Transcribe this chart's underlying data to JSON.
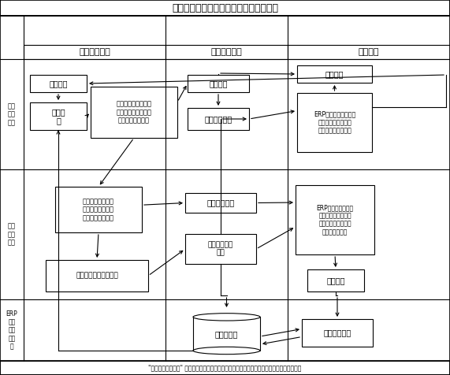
{
  "title": "产成品库区产品销货流程（容错改进后）",
  "col_headers": [
    "业务指令执行",
    "产品实物流转",
    "数据运行"
  ],
  "row_labels": [
    "产品\n销售\n业务",
    "库区\n管理\n业务",
    "ERP\n系统\n数据\n库支\n撑"
  ],
  "footer": "\"先起运后验证流程\" 整车起运与数据验证没有时间依赖关系，错码处置作为系统内部运行过程",
  "boxes": {
    "kh": {
      "text": "客户需求",
      "fs": 7
    },
    "ck": {
      "text": "存货检\n索",
      "fs": 7
    },
    "zl": {
      "text": "产品销货指令（客户\n、产品规格、色号、\n缸号、产品净重）",
      "fs": 6
    },
    "ss": {
      "text": "销售供货",
      "fs": 7
    },
    "cpq": {
      "text": "产品出库起运",
      "fs": 7
    },
    "dk": {
      "text": "贷款结算",
      "fs": 7
    },
    "e1": {
      "text": "ERP程序销管运行模块\n（销货统计、贷款核\n算、应收账款记账）",
      "fs": 5.8
    },
    "sp": {
      "text": "实物配货（产品规\n格、色号、缸号、\n件数、产品净重）",
      "fs": 6
    },
    "cb": {
      "text": "出库件号条码信\n息采集",
      "fs": 6.5
    },
    "zc": {
      "text": "出库产品装车",
      "fs": 7
    },
    "jl": {
      "text": "出库件号记录\n文件",
      "fs": 6.5
    },
    "e2": {
      "text": "ERP程序仓储运行模\n块（产品出库单据核\n实、销货账务记录、\n仓储存货变更）",
      "fs": 5.5
    },
    "cc": {
      "text": "错码触发",
      "fs": 7
    },
    "db": {
      "text": "数据库系统",
      "fs": 7
    },
    "rf": {
      "text": "容错算法运行",
      "fs": 7
    }
  }
}
